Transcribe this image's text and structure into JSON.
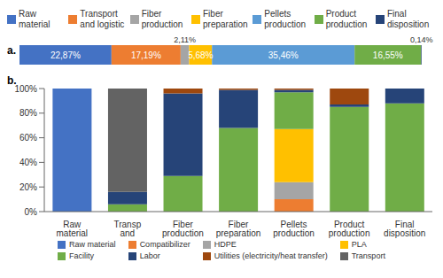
{
  "chart_data": [
    {
      "type": "bar",
      "title": "a.",
      "orientation": "horizontal",
      "stacked": true,
      "data_labels": true,
      "tick_labels": false,
      "legend": "top",
      "categories": [
        null
      ],
      "xlim": [
        0,
        100
      ],
      "series": [
        {
          "name": "Raw material",
          "color": "#4472c4",
          "values": [
            22.87
          ],
          "value_labels": [
            "22,87%"
          ]
        },
        {
          "name": "Transport and logistic",
          "color": "#ed7d31",
          "values": [
            17.19
          ],
          "value_labels": [
            "17,19%"
          ]
        },
        {
          "name": "Fiber production",
          "color": "#a5a5a5",
          "values": [
            2.11
          ],
          "value_labels": [
            "2,11%"
          ]
        },
        {
          "name": "Fiber preparation",
          "color": "#ffc000",
          "values": [
            5.68
          ],
          "value_labels": [
            "5,68%"
          ]
        },
        {
          "name": "Pellets production",
          "color": "#5b9bd5",
          "values": [
            35.46
          ],
          "value_labels": [
            "35,46%"
          ]
        },
        {
          "name": "Product production",
          "color": "#70ad47",
          "values": [
            16.55
          ],
          "value_labels": [
            "16,55%"
          ]
        },
        {
          "name": "Final disposition",
          "color": "#264478",
          "values": [
            0.14
          ],
          "value_labels": [
            "0,14%"
          ]
        }
      ]
    },
    {
      "type": "bar",
      "title": "b.",
      "stacked": true,
      "grid": false,
      "legend": "bottom",
      "categories": [
        "Raw material",
        "Transp and logistic",
        "Fiber production",
        "Fiber preparation",
        "Pellets production",
        "Product production",
        "Final disposition"
      ],
      "ylim": [
        0,
        100
      ],
      "yticks": [
        {
          "value": 0,
          "label": "0%"
        },
        {
          "value": 20,
          "label": "20%"
        },
        {
          "value": 40,
          "label": "40%"
        },
        {
          "value": 60,
          "label": "60%"
        },
        {
          "value": 80,
          "label": "80%"
        },
        {
          "value": 100,
          "label": "100%"
        }
      ],
      "series": [
        {
          "name": "Raw material",
          "color": "#4472c4",
          "values": [
            100,
            0,
            0,
            0,
            0,
            0,
            0
          ]
        },
        {
          "name": "Compatibilizer",
          "color": "#ed7d31",
          "values": [
            0,
            0,
            0,
            0,
            10,
            0,
            0
          ]
        },
        {
          "name": "HDPE",
          "color": "#a5a5a5",
          "values": [
            0,
            0,
            0,
            0,
            14,
            0,
            0
          ]
        },
        {
          "name": "PLA",
          "color": "#ffc000",
          "values": [
            0,
            0,
            0,
            0,
            43,
            0,
            0
          ]
        },
        {
          "name": "Facility",
          "color": "#70ad47",
          "values": [
            0,
            6,
            29,
            68,
            30,
            85,
            88
          ]
        },
        {
          "name": "Labor",
          "color": "#264478",
          "values": [
            0,
            10,
            67,
            31,
            2,
            2,
            12
          ]
        },
        {
          "name": "Utilities (electricity/heat transfer)",
          "color": "#9e480e",
          "values": [
            0,
            0,
            4,
            1,
            1,
            13,
            0
          ]
        },
        {
          "name": "Transport",
          "color": "#636363",
          "values": [
            0,
            84,
            0,
            0,
            0,
            0,
            0
          ]
        }
      ]
    }
  ]
}
